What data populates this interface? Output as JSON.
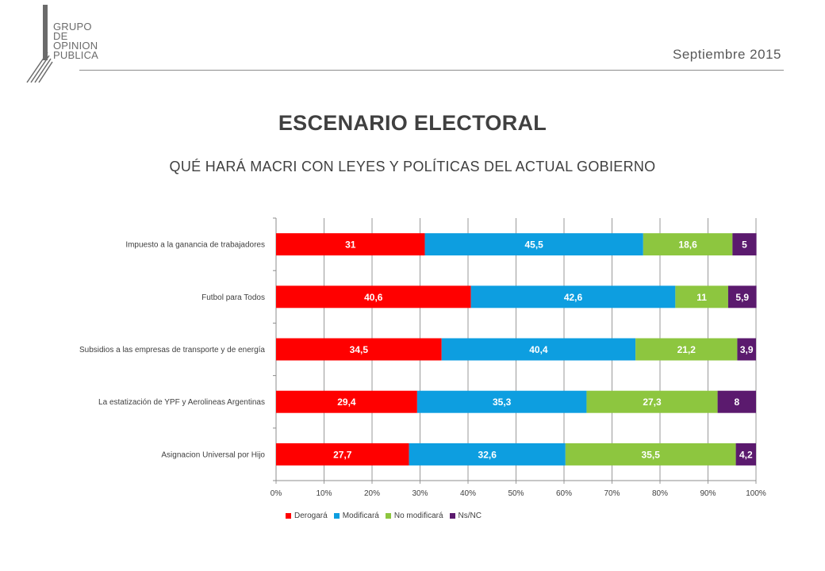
{
  "header": {
    "logo_lines": [
      "GRUPO",
      "DE",
      "OPINION",
      "PUBLICA"
    ],
    "date": "Septiembre 2015",
    "title": "ESCENARIO ELECTORAL",
    "subtitle": "QUÉ HARÁ MACRI CON LEYES Y POLÍTICAS DEL ACTUAL GOBIERNO"
  },
  "chart_data": {
    "type": "bar",
    "orientation": "horizontal",
    "stacked": "percent",
    "title": "",
    "xlabel": "",
    "ylabel": "",
    "xlim": [
      0,
      100
    ],
    "x_ticks": [
      "0%",
      "10%",
      "20%",
      "30%",
      "40%",
      "50%",
      "60%",
      "70%",
      "80%",
      "90%",
      "100%"
    ],
    "grid": true,
    "legend_position": "bottom",
    "categories": [
      "Impuesto a la ganancia de trabajadores",
      "Futbol para Todos",
      "Subsidios a las empresas de transporte y de energía",
      "La estatización de YPF y Aerolineas Argentinas",
      "Asignacion Universal por Hijo"
    ],
    "series": [
      {
        "name": "Derogará",
        "color": "#ff0000",
        "values": [
          31,
          40.6,
          34.5,
          29.4,
          27.7
        ],
        "labels": [
          "31",
          "40,6",
          "34,5",
          "29,4",
          "27,7"
        ]
      },
      {
        "name": "Modificará",
        "color": "#0d9ee0",
        "values": [
          45.5,
          42.6,
          40.4,
          35.3,
          32.6
        ],
        "labels": [
          "45,5",
          "42,6",
          "40,4",
          "35,3",
          "32,6"
        ]
      },
      {
        "name": "No modificará",
        "color": "#8dc63f",
        "values": [
          18.6,
          11,
          21.2,
          27.3,
          35.5
        ],
        "labels": [
          "18,6",
          "11",
          "21,2",
          "27,3",
          "35,5"
        ]
      },
      {
        "name": "Ns/NC",
        "color": "#5b1a6e",
        "values": [
          5,
          5.9,
          3.9,
          8,
          4.2
        ],
        "labels": [
          "5",
          "5,9",
          "3,9",
          "8",
          "4,2"
        ]
      }
    ]
  }
}
